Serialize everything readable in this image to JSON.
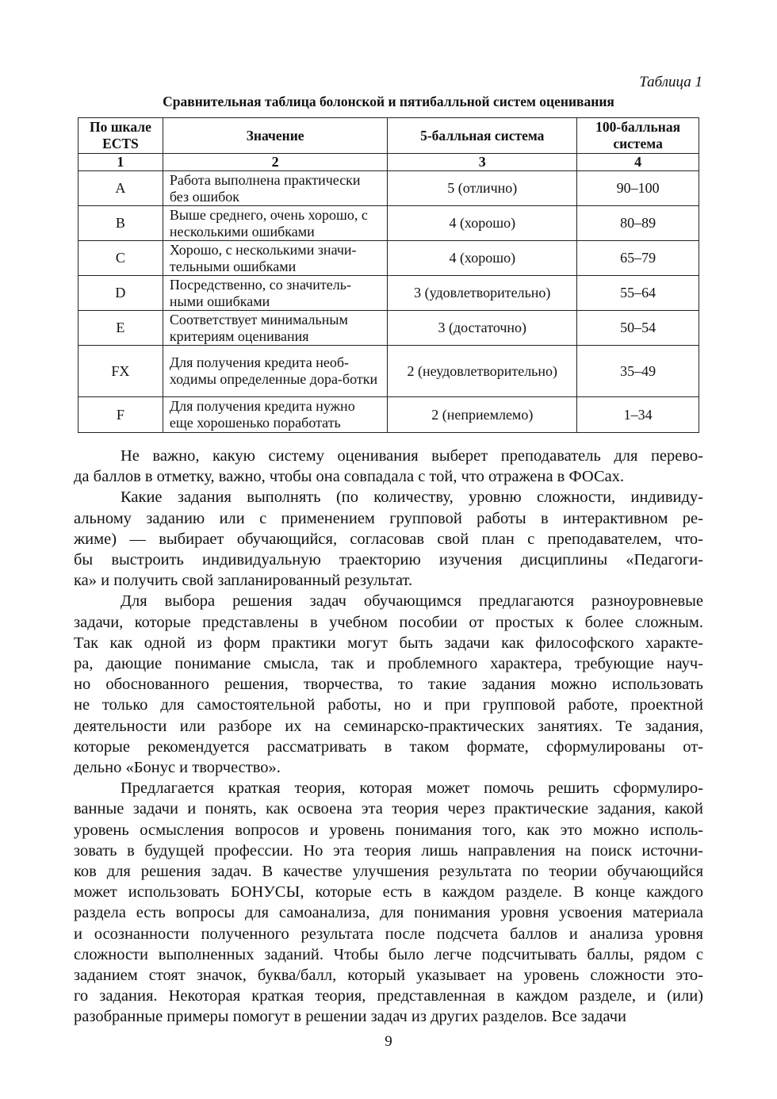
{
  "table_caption": "Таблица 1",
  "table_title": "Сравнительная таблица болонской и пятибалльной систем оценивания",
  "table": {
    "headers": [
      "По шкале ECTS",
      "Значение",
      "5-балльная система",
      "100-балльная система"
    ],
    "numbers": [
      "1",
      "2",
      "3",
      "4"
    ],
    "rows": [
      {
        "ects": "A",
        "meaning": "Работа выполнена практически без ошибок",
        "five": "5 (отлично)",
        "hundred": "90–100"
      },
      {
        "ects": "B",
        "meaning": "Выше среднего, очень хорошо, с несколькими ошибками",
        "five": "4 (хорошо)",
        "hundred": "80–89"
      },
      {
        "ects": "C",
        "meaning": "Хорошо, с несколькими значи-тельными ошибками",
        "five": "4 (хорошо)",
        "hundred": "65–79"
      },
      {
        "ects": "D",
        "meaning": "Посредственно, со значитель-ными ошибками",
        "five": "3 (удовлетворительно)",
        "hundred": "55–64"
      },
      {
        "ects": "E",
        "meaning": "Соответствует минимальным критериям оценивания",
        "five": "3 (достаточно)",
        "hundred": "50–54"
      },
      {
        "ects": "FX",
        "meaning": "Для получения кредита необ-ходимы определенные дора-ботки",
        "five": "2 (неудовлетворительно)",
        "hundred": "35–49"
      },
      {
        "ects": "F",
        "meaning": "Для получения кредита нужно еще хорошенько поработать",
        "five": "2 (неприемлемо)",
        "hundred": "1–34"
      }
    ]
  },
  "paragraphs": [
    [
      "Не важно, какую систему оценивания выберет преподаватель для перево-",
      "да баллов в отметку, важно, чтобы она совпадала с той, что отражена в ФОСах."
    ],
    [
      "Какие задания выполнять (по количеству, уровню сложности, индивиду-",
      "альному заданию или с применением групповой работы в интерактивном ре-",
      "жиме) — выбирает обучающийся, согласовав свой план с преподавателем, что-",
      "бы выстроить индивидуальную траекторию изучения дисциплины «Педагоги-",
      "ка» и получить свой запланированный результат."
    ],
    [
      "Для выбора решения задач обучающимся предлагаются разноуровневые",
      "задачи, которые представлены в учебном пособии от простых к более сложным.",
      "Так как одной из форм практики могут быть задачи как философского характе-",
      "ра, дающие понимание смысла, так и проблемного характера, требующие науч-",
      "но обоснованного решения, творчества, то такие задания можно использовать",
      "не только для самостоятельной работы, но и при групповой работе, проектной",
      "деятельности или разборе их на семинарско-практических занятиях. Те задания,",
      "которые рекомендуется рассматривать в таком формате, сформулированы от-",
      "дельно «Бонус и творчество»."
    ],
    [
      "Предлагается краткая теория, которая может помочь решить сформулиро-",
      "ванные задачи и понять, как освоена эта теория через практические задания, какой",
      "уровень осмысления вопросов и уровень понимания того, как это можно исполь-",
      "зовать в будущей профессии. Но эта теория лишь направления на поиск источни-",
      "ков для решения задач. В качестве улучшения результата по теории обучающийся",
      "может использовать БОНУСЫ, которые есть в каждом разделе. В конце каждого",
      "раздела есть вопросы для самоанализа, для понимания уровня усвоения материала",
      "и осознанности полученного результата после подсчета баллов и анализа уровня",
      "сложности выполненных заданий. Чтобы было легче подсчитывать баллы, рядом с",
      "заданием стоят значок, буква/балл, который указывает на уровень сложности это-",
      "го задания. Некоторая краткая теория, представленная в каждом разделе, и (или)",
      "разобранные примеры помогут в решении задач из других разделов. Все задачи"
    ]
  ],
  "page_number": "9"
}
